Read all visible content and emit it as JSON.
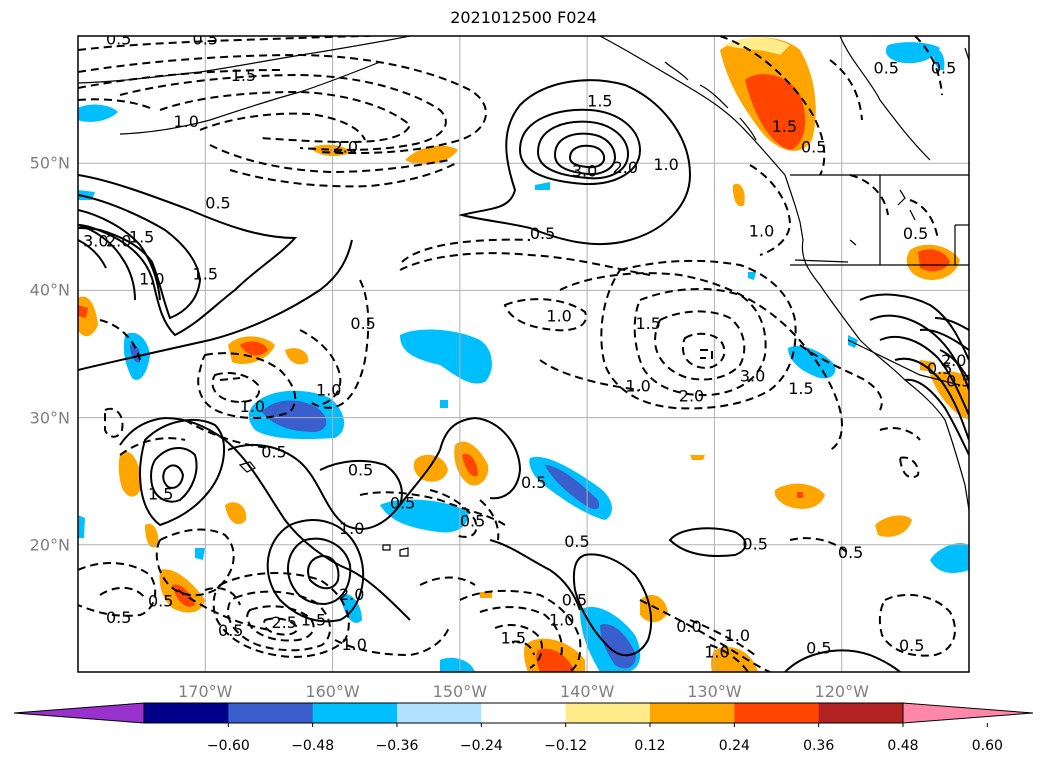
{
  "title": "2021012500 F024",
  "map": {
    "lat_labels": [
      {
        "text": "50°N",
        "lat": 50
      },
      {
        "text": "40°N",
        "lat": 40
      },
      {
        "text": "30°N",
        "lat": 30
      },
      {
        "text": "20°N",
        "lat": 20
      }
    ],
    "lon_labels": [
      {
        "text": "170°W",
        "lon": -170
      },
      {
        "text": "160°W",
        "lon": -160
      },
      {
        "text": "150°W",
        "lon": -150
      },
      {
        "text": "140°W",
        "lon": -140
      },
      {
        "text": "130°W",
        "lon": -130
      },
      {
        "text": "120°W",
        "lon": -120
      }
    ],
    "extent": {
      "lon_min": -180,
      "lon_max": -110,
      "lat_min": 10,
      "lat_max": 60
    },
    "contour_labels": [
      {
        "text": "0.5",
        "lon": -176.8,
        "lat": 59.7
      },
      {
        "text": "0.5",
        "lon": -170.0,
        "lat": 59.7
      },
      {
        "text": "1.5",
        "lon": -167.0,
        "lat": 56.8
      },
      {
        "text": "1.0",
        "lon": -171.5,
        "lat": 53.2
      },
      {
        "text": "2.0",
        "lon": -159.0,
        "lat": 51.2
      },
      {
        "text": "1.5",
        "lon": -139.0,
        "lat": 54.8
      },
      {
        "text": "3.0",
        "lon": -140.2,
        "lat": 49.3
      },
      {
        "text": "2.0",
        "lon": -137.0,
        "lat": 49.6
      },
      {
        "text": "1.0",
        "lon": -133.8,
        "lat": 49.8
      },
      {
        "text": "0.5",
        "lon": -169.0,
        "lat": 46.8
      },
      {
        "text": "3.0",
        "lon": -178.6,
        "lat": 43.8
      },
      {
        "text": "2.0",
        "lon": -176.8,
        "lat": 43.8
      },
      {
        "text": "1.5",
        "lon": -175.0,
        "lat": 44.1
      },
      {
        "text": "1.0",
        "lon": -174.2,
        "lat": 40.8
      },
      {
        "text": "1.5",
        "lon": -170.0,
        "lat": 41.2
      },
      {
        "text": "0.5",
        "lon": -143.5,
        "lat": 44.4
      },
      {
        "text": "0.5",
        "lon": -116.5,
        "lat": 57.4
      },
      {
        "text": "0.5",
        "lon": -112.0,
        "lat": 57.4
      },
      {
        "text": "1.5",
        "lon": -124.5,
        "lat": 52.8
      },
      {
        "text": "0.5",
        "lon": -122.2,
        "lat": 51.2
      },
      {
        "text": "1.0",
        "lon": -126.3,
        "lat": 44.6
      },
      {
        "text": "0.5",
        "lon": -114.2,
        "lat": 44.4
      },
      {
        "text": "1.0",
        "lon": -142.2,
        "lat": 37.9
      },
      {
        "text": "1.5",
        "lon": -135.2,
        "lat": 37.3
      },
      {
        "text": "3.0",
        "lon": -127.0,
        "lat": 33.2
      },
      {
        "text": "2.0",
        "lon": -131.8,
        "lat": 31.6
      },
      {
        "text": "1.0",
        "lon": -136.0,
        "lat": 32.4
      },
      {
        "text": "1.5",
        "lon": -123.2,
        "lat": 32.2
      },
      {
        "text": "0.5",
        "lon": -157.6,
        "lat": 37.3
      },
      {
        "text": "1.0",
        "lon": -160.3,
        "lat": 32.1
      },
      {
        "text": "1.0",
        "lon": -166.3,
        "lat": 30.8
      },
      {
        "text": "0.5",
        "lon": -164.6,
        "lat": 27.2
      },
      {
        "text": "1.5",
        "lon": -173.5,
        "lat": 23.9
      },
      {
        "text": "0.5",
        "lon": -157.8,
        "lat": 25.8
      },
      {
        "text": "0.5",
        "lon": -154.5,
        "lat": 23.2
      },
      {
        "text": "0.5",
        "lon": -149.0,
        "lat": 21.8
      },
      {
        "text": "0.5",
        "lon": -144.2,
        "lat": 24.8
      },
      {
        "text": "1.0",
        "lon": -158.5,
        "lat": 21.2
      },
      {
        "text": "2.0",
        "lon": -158.5,
        "lat": 16.0
      },
      {
        "text": "2.5",
        "lon": -163.8,
        "lat": 13.8
      },
      {
        "text": "1.5",
        "lon": -161.5,
        "lat": 14.0
      },
      {
        "text": "1.0",
        "lon": -158.3,
        "lat": 12.1
      },
      {
        "text": "0.5",
        "lon": -173.5,
        "lat": 15.5
      },
      {
        "text": "0.5",
        "lon": -176.8,
        "lat": 14.2
      },
      {
        "text": "0.5",
        "lon": -168.0,
        "lat": 13.2
      },
      {
        "text": "0.5",
        "lon": -140.8,
        "lat": 20.2
      },
      {
        "text": "0.5",
        "lon": -126.8,
        "lat": 20.0
      },
      {
        "text": "0.5",
        "lon": -119.3,
        "lat": 19.3
      },
      {
        "text": "0.5",
        "lon": -141.0,
        "lat": 15.6
      },
      {
        "text": "1.0",
        "lon": -142.0,
        "lat": 14.0
      },
      {
        "text": "1.5",
        "lon": -145.8,
        "lat": 12.6
      },
      {
        "text": "0.0",
        "lon": -132.0,
        "lat": 13.5
      },
      {
        "text": "1.0",
        "lon": -128.2,
        "lat": 12.8
      },
      {
        "text": "1.0",
        "lon": -129.8,
        "lat": 11.5
      },
      {
        "text": "0.5",
        "lon": -121.8,
        "lat": 11.8
      },
      {
        "text": "0.5",
        "lon": -114.5,
        "lat": 12.0
      },
      {
        "text": "0.5",
        "lon": -112.3,
        "lat": 33.8
      },
      {
        "text": "2.0",
        "lon": -111.2,
        "lat": 34.4
      },
      {
        "text": "0.5",
        "lon": -110.8,
        "lat": 32.8
      }
    ]
  },
  "colorbar": {
    "colors": [
      "#9932cc",
      "#00008b",
      "#3a5fcd",
      "#00bfff",
      "#b0e2ff",
      "#ffffff",
      "#ffec8b",
      "#ffa500",
      "#ff4500",
      "#b22222",
      "#ff88aa"
    ],
    "tick_labels": [
      "−0.60",
      "−0.48",
      "−0.36",
      "−0.24",
      "−0.12",
      "0.12",
      "0.24",
      "0.36",
      "0.48",
      "0.60"
    ]
  }
}
